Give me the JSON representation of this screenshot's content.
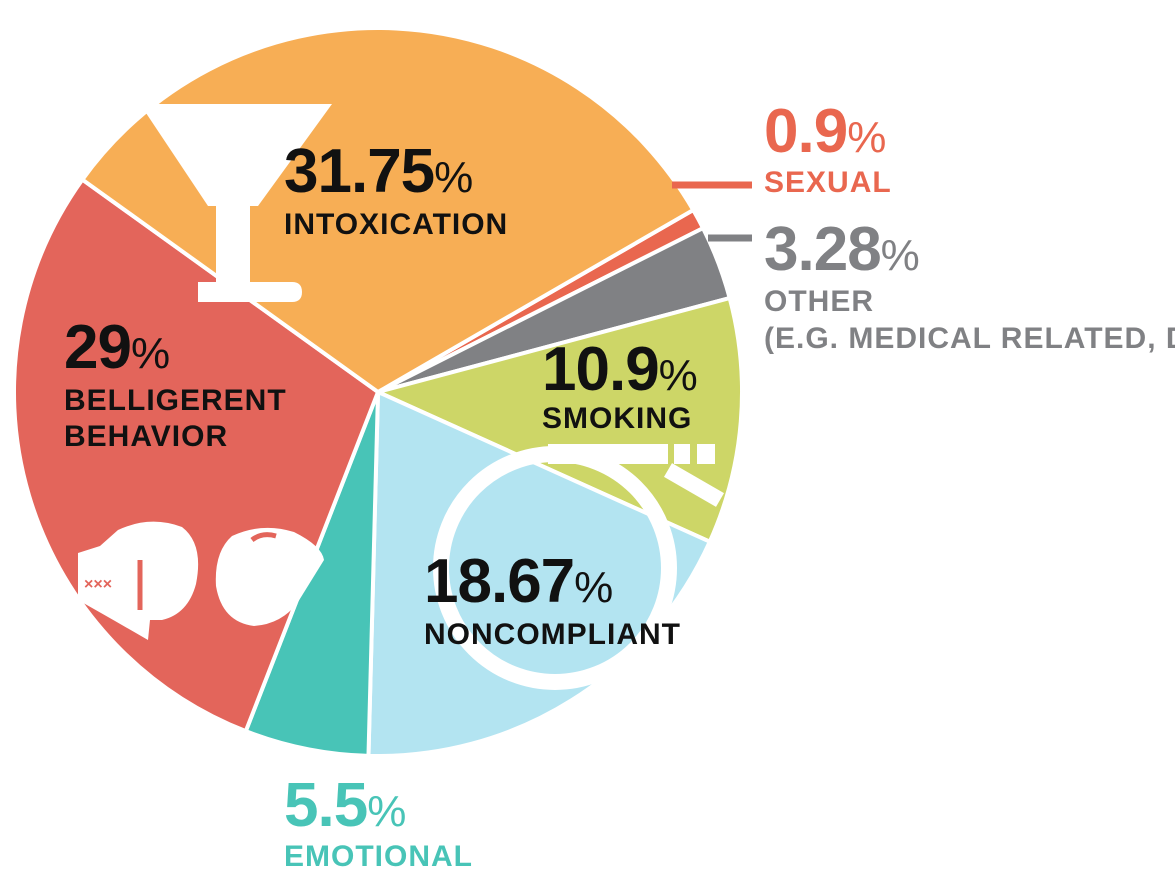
{
  "chart_data": {
    "type": "pie",
    "slices": [
      {
        "value": 0.9,
        "value_label": "0.9",
        "unit": "%",
        "label": "SEXUAL",
        "label_line2": "",
        "color": "#E9674F"
      },
      {
        "value": 3.28,
        "value_label": "3.28",
        "unit": "%",
        "label": "OTHER",
        "label_line2": "(E.G. MEDICAL RELATED, DRUGS)",
        "color": "#808184"
      },
      {
        "value": 10.9,
        "value_label": "10.9",
        "unit": "%",
        "label": "SMOKING",
        "label_line2": "",
        "color": "#CDD667"
      },
      {
        "value": 18.67,
        "value_label": "18.67",
        "unit": "%",
        "label": "NONCOMPLIANT",
        "label_line2": "",
        "color": "#B3E4F1"
      },
      {
        "value": 5.5,
        "value_label": "5.5",
        "unit": "%",
        "label": "EMOTIONAL",
        "label_line2": "",
        "color": "#48C4B7"
      },
      {
        "value": 29,
        "value_label": "29",
        "unit": "%",
        "label": "BELLIGERENT",
        "label_line2": "BEHAVIOR",
        "color": "#E3655B"
      },
      {
        "value": 31.75,
        "value_label": "31.75",
        "unit": "%",
        "label": "INTOXICATION",
        "label_line2": "",
        "color": "#F7AE55"
      }
    ],
    "legend": "none"
  },
  "icons": [
    "martini-glass-icon",
    "boxing-gloves-icon",
    "cigarette-icon",
    "magnifying-glass-icon"
  ]
}
